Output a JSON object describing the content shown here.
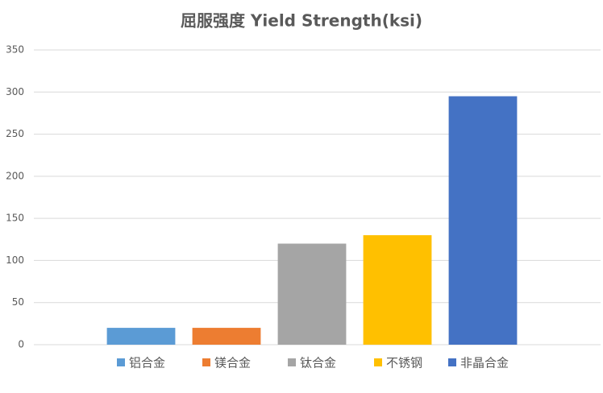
{
  "chart_data": {
    "type": "bar",
    "title": "屈服强度 Yield Strength(ksi)",
    "categories": [
      "铝合金",
      "镁合金",
      "钛合金",
      "不锈钢",
      "非晶合金"
    ],
    "values": [
      20,
      20,
      120,
      130,
      295
    ],
    "colors": [
      "#5b9bd5",
      "#ed7d31",
      "#a5a5a5",
      "#ffc000",
      "#4472c4"
    ],
    "ylim": [
      0,
      350
    ],
    "yticks": [
      0,
      50,
      100,
      150,
      200,
      250,
      300,
      350
    ],
    "grid": true
  }
}
